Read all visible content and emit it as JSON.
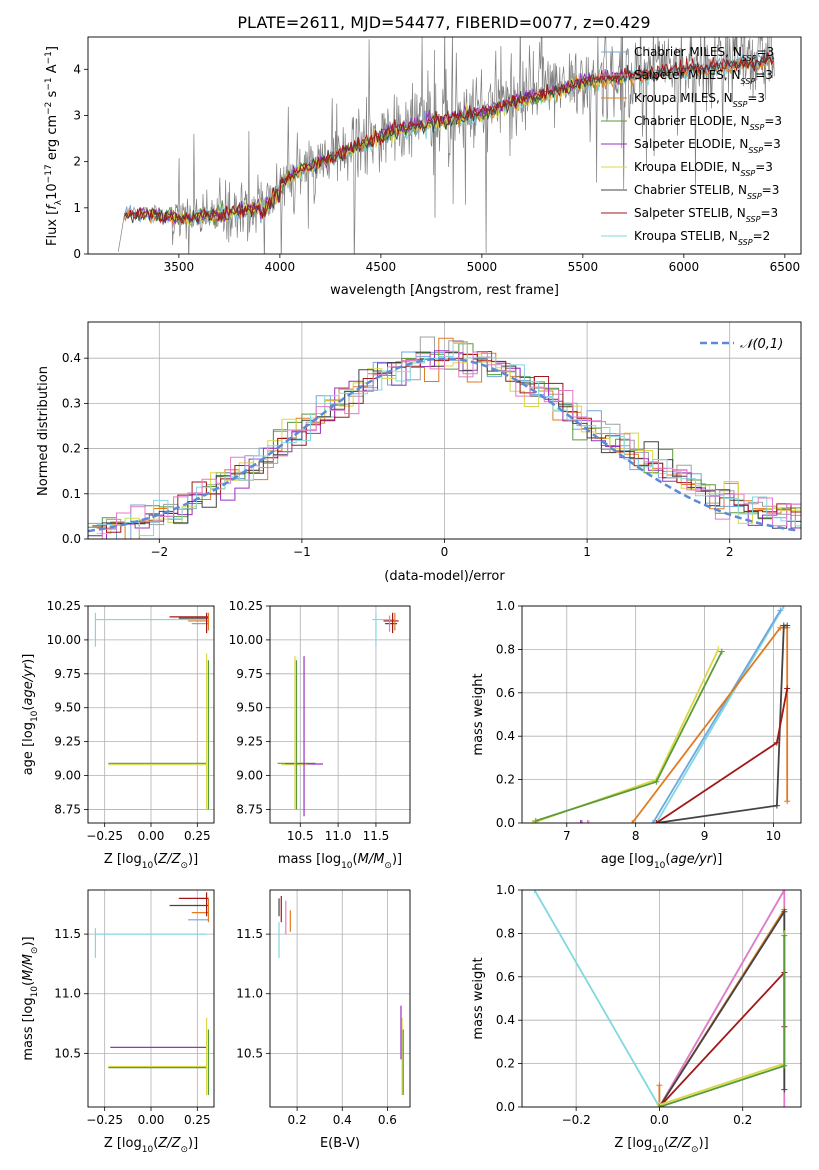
{
  "figure_title": "PLATE=2611, MJD=54477, FIBERID=0077, z=0.429",
  "colors": {
    "Chabrier MILES": "#6fa8dc",
    "Salpeter MILES": "#a0a0a0",
    "Kroupa MILES": "#e07b20",
    "Chabrier ELODIE": "#5a9a3a",
    "Salpeter ELODIE": "#9b30c0",
    "Kroupa ELODIE": "#d8d848",
    "Chabrier STELIB": "#444444",
    "Salpeter STELIB": "#a01818",
    "Kroupa STELIB": "#80d8e0",
    "pink": "#e878c8",
    "data": "#808080",
    "normal": "#5b8bd8"
  },
  "chart_data": [
    {
      "id": "spectrum",
      "type": "line",
      "title": "PLATE=2611, MJD=54477, FIBERID=0077, z=0.429",
      "xlabel": "wavelength [Angstrom, rest frame]",
      "ylabel": "Flux [f_λ10^-17 erg cm^-2 s^-1 A^-1]",
      "xlim": [
        3050,
        6580
      ],
      "ylim": [
        0,
        4.7
      ],
      "xticks": [
        3500,
        4000,
        4500,
        5000,
        5500,
        6000,
        6500
      ],
      "yticks": [
        0,
        1,
        2,
        3,
        4
      ],
      "legend_position": "top-right",
      "legend": [
        "Chabrier MILES, N_SSP=3",
        "Salpeter MILES, N_SSP=3",
        "Kroupa MILES, N_SSP=3",
        "Chabrier ELODIE, N_SSP=3",
        "Salpeter ELODIE, N_SSP=3",
        "Kroupa ELODIE, N_SSP=3",
        "Chabrier STELIB, N_SSP=3",
        "Salpeter STELIB, N_SSP=3",
        "Kroupa STELIB, N_SSP=2"
      ],
      "continuum": {
        "x": [
          3200,
          3230,
          3300,
          3400,
          3500,
          3600,
          3700,
          3800,
          3900,
          3950,
          4000,
          4100,
          4200,
          4300,
          4400,
          4500,
          4600,
          4700,
          4800,
          4900,
          5000,
          5100,
          5200,
          5300,
          5400,
          5500,
          5600,
          5700,
          5800,
          5900,
          6000,
          6100,
          6200,
          6300,
          6400,
          6450
        ],
        "y": [
          0.05,
          0.85,
          0.9,
          0.85,
          0.8,
          0.82,
          0.85,
          0.95,
          1.05,
          1.25,
          1.55,
          1.85,
          2.05,
          2.2,
          2.4,
          2.6,
          2.75,
          2.85,
          2.95,
          3.05,
          3.1,
          3.25,
          3.4,
          3.5,
          3.65,
          3.8,
          3.85,
          3.9,
          3.95,
          4.0,
          4.05,
          4.1,
          4.15,
          4.2,
          4.25,
          4.3
        ]
      }
    },
    {
      "id": "residuals",
      "type": "line",
      "xlabel": "(data-model)/error",
      "ylabel": "Normed distribution",
      "xlim": [
        -2.5,
        2.5
      ],
      "ylim": [
        0,
        0.48
      ],
      "xticks": [
        -2,
        -1,
        0,
        1,
        2
      ],
      "yticks": [
        0.0,
        0.1,
        0.2,
        0.3,
        0.4
      ],
      "legend": [
        "𝒩(0,1)"
      ],
      "legend_position": "top-right",
      "bin_width": 0.1
    },
    {
      "id": "age-vs-Z",
      "type": "scatter",
      "xlabel": "Z [log10(Z/Z⊙)]",
      "ylabel": "age  [log10(age/yr)]",
      "xlim": [
        -0.34,
        0.34
      ],
      "ylim": [
        8.65,
        10.25
      ],
      "xticks": [
        -0.25,
        0.0,
        0.25
      ],
      "yticks": [
        8.75,
        9.0,
        9.25,
        9.5,
        9.75,
        10.0,
        10.25
      ],
      "hsegs": [
        {
          "x1": -0.3,
          "x2": 0.3,
          "y": 10.15,
          "c": "Kroupa STELIB"
        },
        {
          "x1": 0.1,
          "x2": 0.31,
          "y": 10.17,
          "c": "Salpeter STELIB"
        },
        {
          "x1": 0.15,
          "x2": 0.31,
          "y": 10.16,
          "c": "Chabrier STELIB"
        },
        {
          "x1": 0.2,
          "x2": 0.31,
          "y": 10.14,
          "c": "Kroupa MILES"
        },
        {
          "x1": 0.22,
          "x2": 0.31,
          "y": 10.12,
          "c": "Salpeter MILES"
        },
        {
          "x1": -0.23,
          "x2": 0.3,
          "y": 9.09,
          "c": "Chabrier ELODIE"
        },
        {
          "x1": -0.23,
          "x2": 0.3,
          "y": 9.08,
          "c": "Kroupa ELODIE"
        }
      ],
      "vsegs": [
        {
          "x": -0.3,
          "y1": 9.95,
          "y2": 10.2,
          "c": "Kroupa STELIB"
        },
        {
          "x": 0.3,
          "y1": 10.05,
          "y2": 10.2,
          "c": "Salpeter STELIB"
        },
        {
          "x": 0.31,
          "y1": 10.07,
          "y2": 10.2,
          "c": "Kroupa MILES"
        },
        {
          "x": 0.3,
          "y1": 8.75,
          "y2": 9.9,
          "c": "Kroupa ELODIE"
        },
        {
          "x": 0.31,
          "y1": 8.75,
          "y2": 9.85,
          "c": "Chabrier ELODIE"
        }
      ]
    },
    {
      "id": "age-vs-mass",
      "type": "scatter",
      "xlabel": "mass [log10(M/M⊙)]",
      "ylabel": "",
      "xlim": [
        10.1,
        11.95
      ],
      "ylim": [
        8.65,
        10.25
      ],
      "xticks": [
        10.5,
        11.0,
        11.5
      ],
      "yticks": [
        8.75,
        9.0,
        9.25,
        9.5,
        9.75,
        10.0,
        10.25
      ],
      "hsegs": [
        {
          "x1": 11.45,
          "x2": 11.75,
          "y": 10.15,
          "c": "Kroupa STELIB"
        },
        {
          "x1": 11.6,
          "x2": 11.8,
          "y": 10.14,
          "c": "Salpeter STELIB"
        },
        {
          "x1": 11.62,
          "x2": 11.78,
          "y": 10.12,
          "c": "Chabrier STELIB"
        },
        {
          "x1": 10.2,
          "x2": 10.7,
          "y": 9.09,
          "c": "Chabrier ELODIE"
        },
        {
          "x1": 10.3,
          "x2": 10.8,
          "y": 9.085,
          "c": "Salpeter ELODIE"
        },
        {
          "x1": 10.25,
          "x2": 10.6,
          "y": 9.08,
          "c": "Kroupa ELODIE"
        }
      ],
      "vsegs": [
        {
          "x": 11.5,
          "y1": 9.95,
          "y2": 10.2,
          "c": "Kroupa STELIB"
        },
        {
          "x": 11.72,
          "y1": 10.05,
          "y2": 10.2,
          "c": "Salpeter STELIB"
        },
        {
          "x": 11.75,
          "y1": 10.07,
          "y2": 10.2,
          "c": "Kroupa MILES"
        },
        {
          "x": 11.68,
          "y1": 10.06,
          "y2": 10.18,
          "c": "pink"
        },
        {
          "x": 10.43,
          "y1": 8.75,
          "y2": 9.88,
          "c": "Kroupa ELODIE"
        },
        {
          "x": 10.45,
          "y1": 8.75,
          "y2": 9.85,
          "c": "Chabrier ELODIE"
        },
        {
          "x": 10.55,
          "y1": 8.7,
          "y2": 9.88,
          "c": "Salpeter ELODIE"
        }
      ]
    },
    {
      "id": "mass-weight-vs-age",
      "type": "line",
      "xlabel": "age  [log10(age/yr)]",
      "ylabel": "mass weight",
      "xlim": [
        6.35,
        10.4
      ],
      "ylim": [
        0,
        1.0
      ],
      "xticks": [
        7,
        8,
        9,
        10
      ],
      "yticks": [
        0.0,
        0.2,
        0.4,
        0.6,
        0.8,
        1.0
      ],
      "series": [
        {
          "c": "Kroupa STELIB",
          "x": [
            8.3,
            10.15
          ],
          "y": [
            0.0,
            1.0
          ]
        },
        {
          "c": "Chabrier MILES",
          "x": [
            8.25,
            10.1
          ],
          "y": [
            0.0,
            0.98
          ]
        },
        {
          "c": "Kroupa MILES",
          "x": [
            7.95,
            10.1,
            10.2,
            10.2
          ],
          "y": [
            0.0,
            0.9,
            0.9,
            0.1
          ]
        },
        {
          "c": "Chabrier STELIB",
          "x": [
            8.3,
            10.05,
            10.15,
            10.2
          ],
          "y": [
            0.0,
            0.08,
            0.91,
            0.91
          ]
        },
        {
          "c": "Salpeter STELIB",
          "x": [
            8.3,
            10.05,
            10.2
          ],
          "y": [
            0.0,
            0.37,
            0.62
          ]
        },
        {
          "c": "Kroupa ELODIE",
          "x": [
            6.5,
            8.3,
            9.2
          ],
          "y": [
            0.0,
            0.2,
            0.8
          ]
        },
        {
          "c": "Chabrier ELODIE",
          "x": [
            6.55,
            8.3,
            9.25
          ],
          "y": [
            0.01,
            0.19,
            0.79
          ]
        },
        {
          "c": "Salpeter ELODIE",
          "x": [
            7.2,
            7.22
          ],
          "y": [
            0.0,
            0.0
          ]
        },
        {
          "c": "pink",
          "x": [
            7.3,
            7.32
          ],
          "y": [
            0.0,
            0.0
          ]
        }
      ]
    },
    {
      "id": "mass-vs-Z",
      "type": "scatter",
      "xlabel": "Z [log10(Z/Z⊙)]",
      "ylabel": "mass [log10(M/M⊙)]",
      "xlim": [
        -0.34,
        0.34
      ],
      "ylim": [
        10.05,
        11.87
      ],
      "xticks": [
        -0.25,
        0.0,
        0.25
      ],
      "yticks": [
        10.5,
        11.0,
        11.5
      ],
      "hsegs": [
        {
          "x1": -0.3,
          "x2": 0.3,
          "y": 11.5,
          "c": "Kroupa STELIB"
        },
        {
          "x1": 0.15,
          "x2": 0.31,
          "y": 11.8,
          "c": "Salpeter STELIB"
        },
        {
          "x1": 0.1,
          "x2": 0.31,
          "y": 11.74,
          "c": "Chabrier STELIB"
        },
        {
          "x1": 0.22,
          "x2": 0.31,
          "y": 11.68,
          "c": "Kroupa MILES"
        },
        {
          "x1": 0.2,
          "x2": 0.31,
          "y": 11.62,
          "c": "Chabrier MILES"
        },
        {
          "x1": -0.22,
          "x2": 0.3,
          "y": 10.55,
          "c": "Salpeter ELODIE"
        },
        {
          "x1": -0.23,
          "x2": 0.3,
          "y": 10.39,
          "c": "Kroupa ELODIE"
        },
        {
          "x1": -0.23,
          "x2": 0.3,
          "y": 10.38,
          "c": "Chabrier ELODIE"
        }
      ],
      "vsegs": [
        {
          "x": -0.3,
          "y1": 11.3,
          "y2": 11.55,
          "c": "Kroupa STELIB"
        },
        {
          "x": 0.3,
          "y1": 11.65,
          "y2": 11.85,
          "c": "Salpeter STELIB"
        },
        {
          "x": 0.31,
          "y1": 11.6,
          "y2": 11.8,
          "c": "Kroupa MILES"
        },
        {
          "x": 0.3,
          "y1": 10.15,
          "y2": 10.8,
          "c": "Kroupa ELODIE"
        },
        {
          "x": 0.31,
          "y1": 10.15,
          "y2": 10.7,
          "c": "Chabrier ELODIE"
        }
      ]
    },
    {
      "id": "mass-vs-EBV",
      "type": "scatter",
      "xlabel": "E(B-V)",
      "ylabel": "",
      "xlim": [
        0.08,
        0.7
      ],
      "ylim": [
        10.05,
        11.87
      ],
      "xticks": [
        0.2,
        0.4,
        0.6
      ],
      "yticks": [
        10.5,
        11.0,
        11.5
      ],
      "vsegs": [
        {
          "x": 0.12,
          "y1": 11.3,
          "y2": 11.6,
          "c": "Kroupa STELIB"
        },
        {
          "x": 0.13,
          "y1": 11.6,
          "y2": 11.82,
          "c": "Salpeter STELIB"
        },
        {
          "x": 0.12,
          "y1": 11.65,
          "y2": 11.8,
          "c": "Chabrier STELIB"
        },
        {
          "x": 0.15,
          "y1": 11.5,
          "y2": 11.78,
          "c": "pink"
        },
        {
          "x": 0.17,
          "y1": 11.52,
          "y2": 11.7,
          "c": "Kroupa MILES"
        },
        {
          "x": 0.66,
          "y1": 10.45,
          "y2": 10.9,
          "c": "Salpeter ELODIE"
        },
        {
          "x": 0.665,
          "y1": 10.15,
          "y2": 10.8,
          "c": "Kroupa ELODIE"
        },
        {
          "x": 0.67,
          "y1": 10.15,
          "y2": 10.7,
          "c": "Chabrier ELODIE"
        }
      ],
      "hsegs": []
    },
    {
      "id": "mass-weight-vs-Z",
      "type": "line",
      "xlabel": "Z [log10(Z/Z⊙)]",
      "ylabel": "mass weight",
      "xlim": [
        -0.33,
        0.34
      ],
      "ylim": [
        0,
        1.0
      ],
      "xticks": [
        -0.2,
        0.0,
        0.2
      ],
      "yticks": [
        0.0,
        0.2,
        0.4,
        0.6,
        0.8,
        1.0
      ],
      "series": [
        {
          "c": "Kroupa STELIB",
          "x": [
            -0.3,
            0.0,
            0.3
          ],
          "y": [
            1.0,
            0.0,
            1.0
          ]
        },
        {
          "c": "pink",
          "x": [
            0.0,
            0.3,
            0.3
          ],
          "y": [
            0.0,
            1.0,
            0.0
          ]
        },
        {
          "c": "Kroupa MILES",
          "x": [
            0.0,
            0.0,
            0.3
          ],
          "y": [
            0.1,
            0.0,
            0.91
          ]
        },
        {
          "c": "Chabrier STELIB",
          "x": [
            0.0,
            0.3,
            0.3
          ],
          "y": [
            0.0,
            0.9,
            0.08
          ]
        },
        {
          "c": "Salpeter STELIB",
          "x": [
            0.0,
            0.3,
            0.3
          ],
          "y": [
            0.0,
            0.62,
            0.37
          ]
        },
        {
          "c": "Kroupa ELODIE",
          "x": [
            0.0,
            0.3,
            0.3
          ],
          "y": [
            0.01,
            0.2,
            0.8
          ]
        },
        {
          "c": "Chabrier ELODIE",
          "x": [
            0.0,
            0.3,
            0.3
          ],
          "y": [
            0.0,
            0.19,
            0.79
          ]
        }
      ]
    }
  ]
}
